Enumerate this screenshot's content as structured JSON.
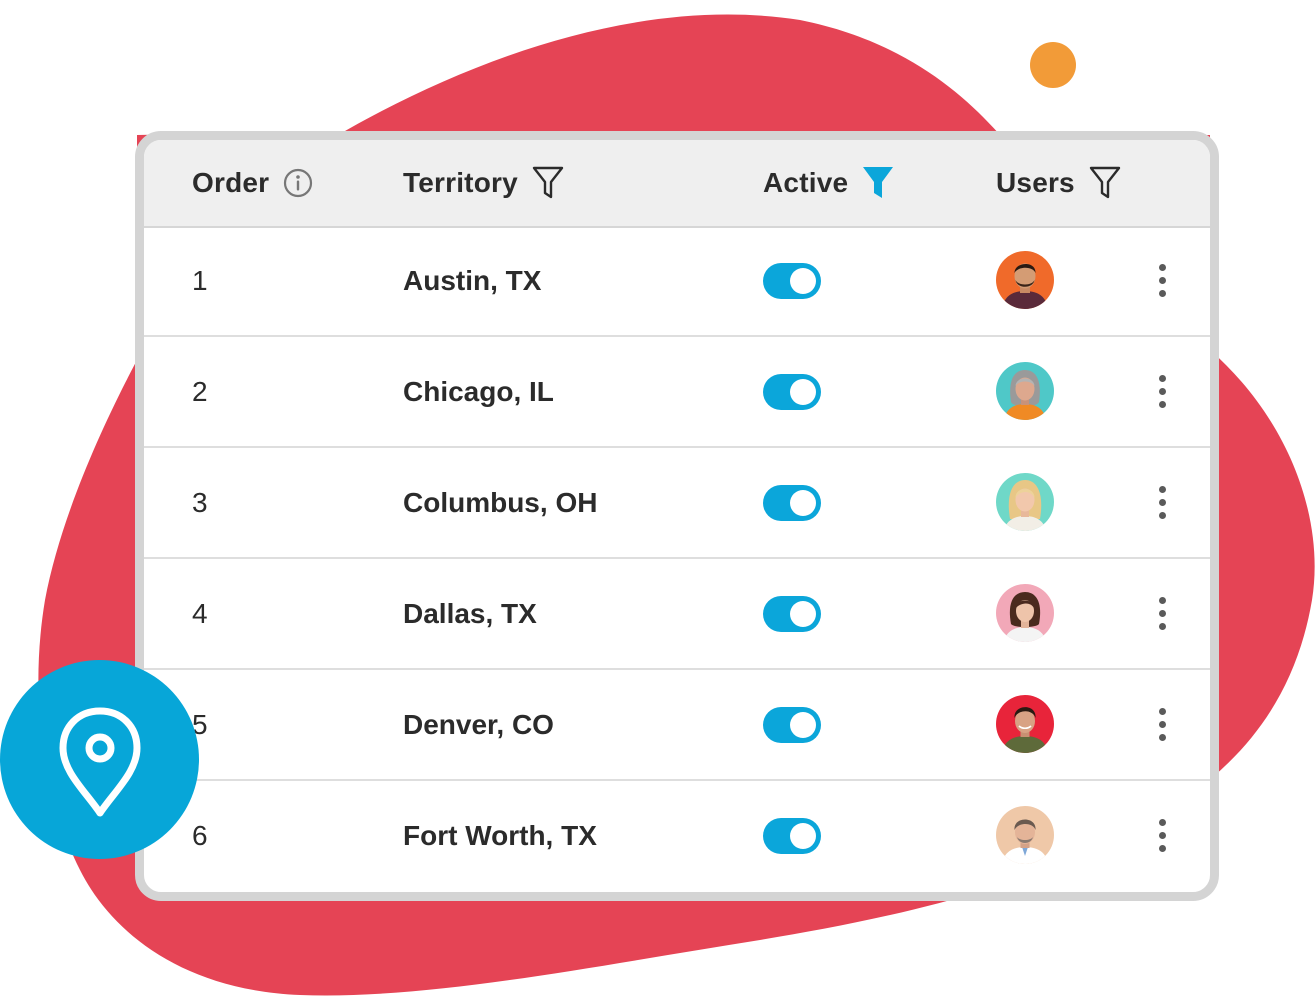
{
  "table": {
    "columns": {
      "order": "Order",
      "territory": "Territory",
      "active": "Active",
      "users": "Users"
    },
    "rows": [
      {
        "order": "1",
        "territory": "Austin, TX",
        "active": true
      },
      {
        "order": "2",
        "territory": "Chicago, IL",
        "active": true
      },
      {
        "order": "3",
        "territory": "Columbus, OH",
        "active": true
      },
      {
        "order": "4",
        "territory": "Dallas, TX",
        "active": true
      },
      {
        "order": "5",
        "territory": "Denver, CO",
        "active": true
      },
      {
        "order": "6",
        "territory": "Fort Worth, TX",
        "active": true
      }
    ]
  },
  "icons": {
    "order_header": "info-icon",
    "territory_header": "filter-outline-icon",
    "active_header": "filter-filled-icon",
    "users_header": "filter-outline-icon",
    "row_actions": "kebab-menu-icon",
    "badge": "map-pin-icon"
  },
  "colors": {
    "accent": "#0BA6DA",
    "blob": "#E54455",
    "dot": "#F29B38",
    "header_bg": "#EFEFEF"
  }
}
